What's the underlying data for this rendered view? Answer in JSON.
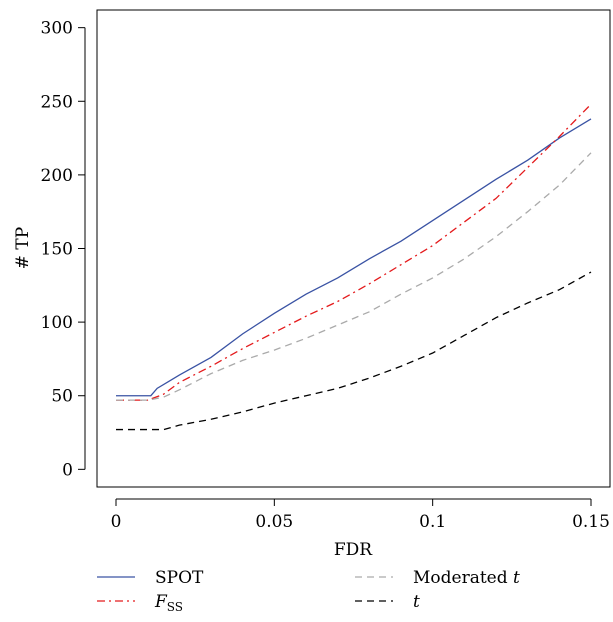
{
  "chart_data": {
    "type": "line",
    "xlabel": "FDR",
    "ylabel": "# TP",
    "xlim": [
      -0.006,
      0.156
    ],
    "ylim": [
      -12,
      312
    ],
    "x_ticks": [
      0,
      0.05,
      0.1,
      0.15
    ],
    "x_tick_labels": [
      "0",
      "0.05",
      "0.1",
      "0.15"
    ],
    "y_ticks": [
      0,
      50,
      100,
      150,
      200,
      250,
      300
    ],
    "y_tick_labels": [
      "0",
      "50",
      "100",
      "150",
      "200",
      "250",
      "300"
    ],
    "grid": false,
    "legend_position": "bottom",
    "series": [
      {
        "name": "SPOT",
        "color": "#3a53a4",
        "dash": "solid",
        "x": [
          0,
          0.011,
          0.013,
          0.02,
          0.03,
          0.04,
          0.05,
          0.06,
          0.07,
          0.08,
          0.09,
          0.1,
          0.11,
          0.12,
          0.13,
          0.14,
          0.15
        ],
        "y": [
          50,
          50,
          55,
          64,
          76,
          92,
          106,
          119,
          130,
          143,
          155,
          169,
          183,
          197,
          210,
          225,
          238
        ]
      },
      {
        "name": "F_SS",
        "color": "#e41a1c",
        "dash": "dashdot",
        "x": [
          0,
          0.01,
          0.015,
          0.02,
          0.03,
          0.04,
          0.05,
          0.06,
          0.07,
          0.08,
          0.09,
          0.1,
          0.11,
          0.12,
          0.13,
          0.14,
          0.15
        ],
        "y": [
          47,
          47,
          51,
          59,
          70,
          82,
          93,
          104,
          114,
          126,
          139,
          152,
          168,
          184,
          205,
          226,
          248
        ]
      },
      {
        "name": "Moderated t",
        "color": "#aaaaaa",
        "dash": "dashed",
        "x": [
          0,
          0.01,
          0.015,
          0.02,
          0.03,
          0.04,
          0.05,
          0.06,
          0.07,
          0.08,
          0.09,
          0.1,
          0.11,
          0.12,
          0.13,
          0.14,
          0.15
        ],
        "y": [
          47,
          47,
          49,
          54,
          65,
          74,
          81,
          89,
          98,
          107,
          119,
          130,
          143,
          158,
          175,
          193,
          215
        ]
      },
      {
        "name": "t",
        "color": "#000000",
        "dash": "dashed",
        "x": [
          0,
          0.015,
          0.02,
          0.03,
          0.04,
          0.05,
          0.06,
          0.07,
          0.08,
          0.09,
          0.1,
          0.11,
          0.12,
          0.13,
          0.14,
          0.15
        ],
        "y": [
          27,
          27,
          30,
          34,
          39,
          45,
          50,
          55,
          62,
          70,
          79,
          91,
          103,
          113,
          122,
          134
        ]
      }
    ]
  },
  "legend": [
    {
      "label": "SPOT",
      "sub": "",
      "italic": false,
      "series_index": 0
    },
    {
      "label": "F",
      "sub": "SS",
      "italic": true,
      "series_index": 1
    },
    {
      "label": "Moderated ",
      "sub": "",
      "italic_suffix": "t",
      "italic": false,
      "series_index": 2
    },
    {
      "label": "t",
      "sub": "",
      "italic": true,
      "series_index": 3
    }
  ]
}
